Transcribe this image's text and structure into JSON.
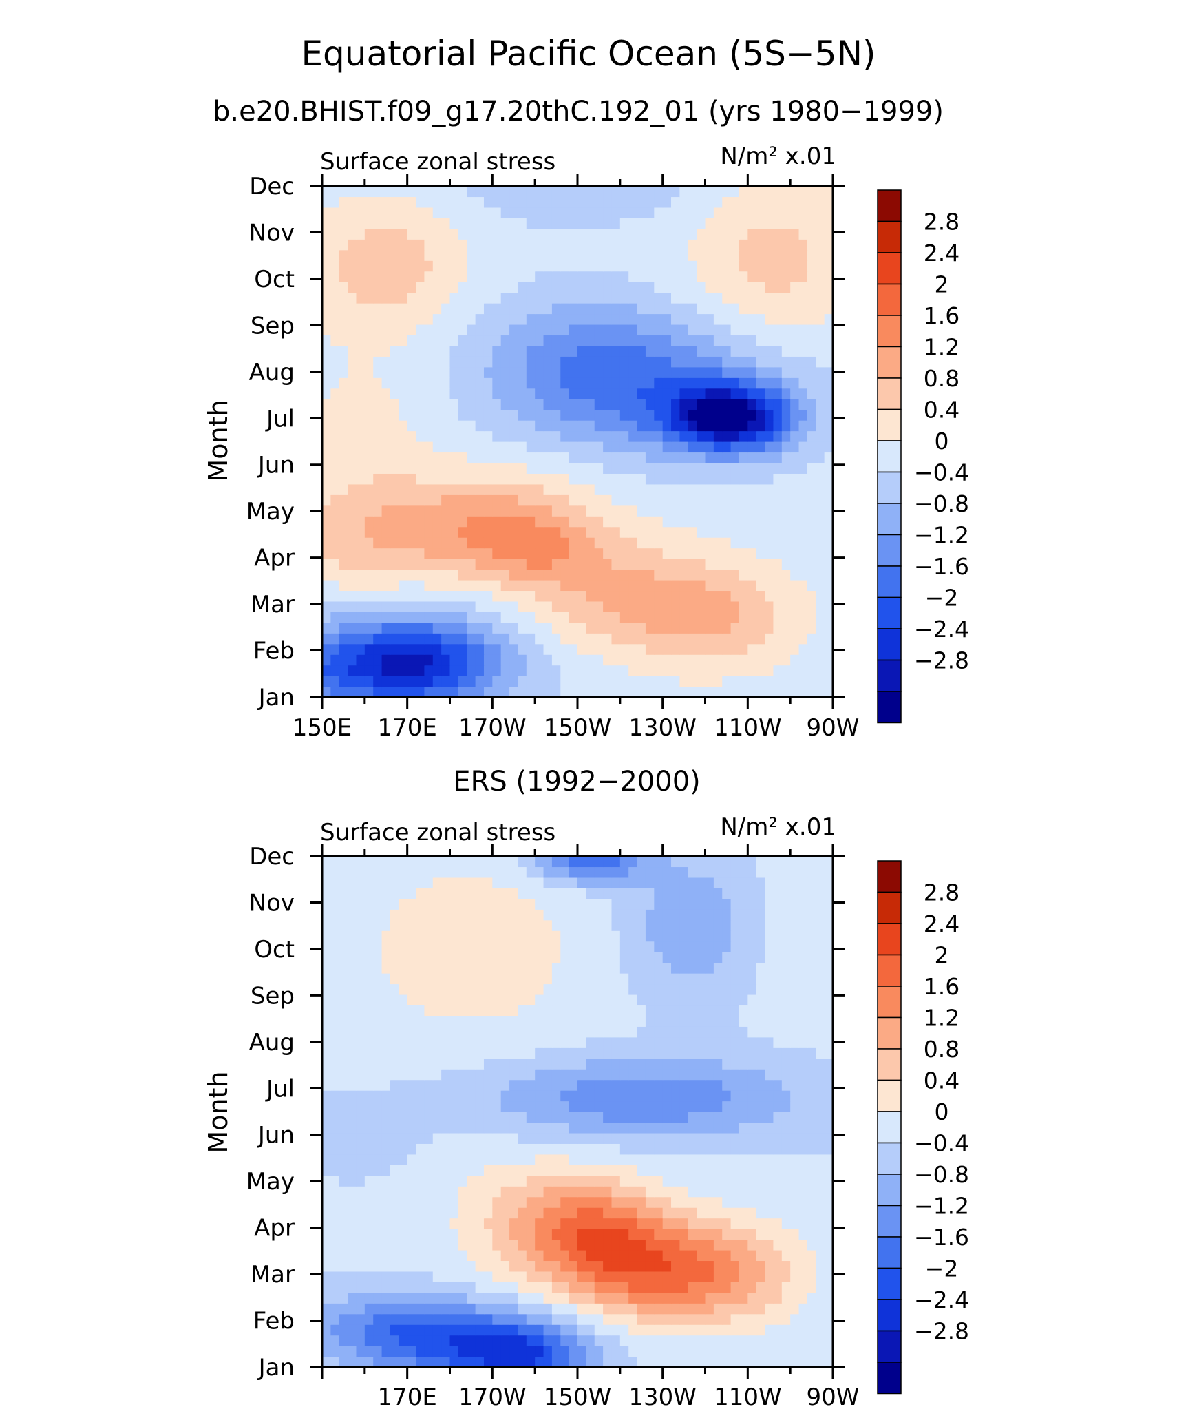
{
  "figure": {
    "title": "Equatorial Pacific Ocean (5S−5N)",
    "subtitle": "b.e20.BHIST.f09_g17.20thC.192_01 (yrs 1980−1999)"
  },
  "colors": {
    "levels_scale": [
      "#00008c",
      "#0a17b5",
      "#0f33d9",
      "#2153ec",
      "#4273ef",
      "#6a93f3",
      "#8fb1f7",
      "#b5cdfa",
      "#d8e8fc",
      "#fde6d2",
      "#fcc8ac",
      "#fbaa85",
      "#f98a5e",
      "#f3683d",
      "#e8451e",
      "#c72a06",
      "#8c0a02"
    ]
  },
  "colorbar": {
    "labels": [
      "2.8",
      "2.4",
      "2",
      "1.6",
      "1.2",
      "0.8",
      "0.4",
      "0",
      "−0.4",
      "−0.8",
      "−1.2",
      "−1.6",
      "−2",
      "−2.4",
      "−2.8"
    ]
  },
  "chart_data": [
    {
      "type": "heatmap",
      "panel_title": "",
      "left_label": "Surface zonal stress",
      "right_label": "N/m² x.01",
      "xlabel": "",
      "ylabel": "Month",
      "x_tick_labels": [
        "150E",
        "170E",
        "170W",
        "150W",
        "130W",
        "110W",
        "90W"
      ],
      "y_tick_labels": [
        "Jan",
        "Feb",
        "Mar",
        "Apr",
        "May",
        "Jun",
        "Jul",
        "Aug",
        "Sep",
        "Oct",
        "Nov",
        "Dec"
      ],
      "x_range": [
        150,
        270
      ],
      "y_range": [
        1,
        12
      ],
      "contour_levels": [
        -2.8,
        -2.4,
        -2.0,
        -1.6,
        -1.2,
        -0.8,
        -0.4,
        0,
        0.4,
        0.8,
        1.2,
        1.6,
        2.0,
        2.4,
        2.8
      ],
      "features": [
        {
          "lon": 155,
          "month": 1.6,
          "value": -1.4,
          "slon": 24,
          "smon": 0.7
        },
        {
          "lon": 172,
          "month": 1.7,
          "value": -1.2,
          "slon": 12,
          "smon": 0.6
        },
        {
          "lon": 178,
          "month": 2.2,
          "value": -0.6,
          "slon": 18,
          "smon": 0.8
        },
        {
          "lon": 162,
          "month": 4.4,
          "value": 0.8,
          "slon": 18,
          "smon": 0.8
        },
        {
          "lon": 192,
          "month": 4.8,
          "value": 1.1,
          "slon": 16,
          "smon": 0.8
        },
        {
          "lon": 218,
          "month": 3.2,
          "value": 1.0,
          "slon": 18,
          "smon": 0.9
        },
        {
          "lon": 243,
          "month": 2.7,
          "value": 0.9,
          "slon": 14,
          "smon": 0.8
        },
        {
          "lon": 200,
          "month": 4.2,
          "value": 0.6,
          "slon": 10,
          "smon": 0.5
        },
        {
          "lon": 160,
          "month": 6.5,
          "value": 0.4,
          "slon": 12,
          "smon": 1.4
        },
        {
          "lon": 246,
          "month": 7.0,
          "value": -2.8,
          "slon": 10,
          "smon": 0.5
        },
        {
          "lon": 230,
          "month": 7.6,
          "value": -1.2,
          "slon": 22,
          "smon": 1.0
        },
        {
          "lon": 210,
          "month": 8.3,
          "value": -0.8,
          "slon": 18,
          "smon": 1.0
        },
        {
          "lon": 165,
          "month": 10.3,
          "value": 0.9,
          "slon": 13,
          "smon": 1.0
        },
        {
          "lon": 256,
          "month": 10.4,
          "value": 0.8,
          "slon": 14,
          "smon": 1.3
        },
        {
          "lon": 210,
          "month": 11.9,
          "value": -0.5,
          "slon": 20,
          "smon": 0.5
        }
      ]
    },
    {
      "type": "heatmap",
      "panel_title": "ERS (1992−2000)",
      "left_label": "Surface zonal stress",
      "right_label": "N/m² x.01",
      "xlabel": "",
      "ylabel": "Month",
      "x_tick_labels": [
        "170E",
        "170W",
        "150W",
        "130W",
        "110W",
        "90W"
      ],
      "y_tick_labels": [
        "Jan",
        "Feb",
        "Mar",
        "Apr",
        "May",
        "Jun",
        "Jul",
        "Aug",
        "Sep",
        "Oct",
        "Nov",
        "Dec"
      ],
      "x_range": [
        150,
        270
      ],
      "y_range": [
        1,
        12
      ],
      "contour_levels": [
        -2.8,
        -2.4,
        -2.0,
        -1.6,
        -1.2,
        -0.8,
        -0.4,
        0,
        0.4,
        0.8,
        1.2,
        1.6,
        2.0,
        2.4,
        2.8
      ],
      "features": [
        {
          "lon": 185,
          "month": 1.4,
          "value": -1.4,
          "slon": 18,
          "smon": 0.6
        },
        {
          "lon": 168,
          "month": 1.9,
          "value": -1.0,
          "slon": 16,
          "smon": 0.5
        },
        {
          "lon": 198,
          "month": 1.2,
          "value": -1.2,
          "slon": 10,
          "smon": 0.5
        },
        {
          "lon": 227,
          "month": 3.1,
          "value": 1.8,
          "slon": 14,
          "smon": 0.8
        },
        {
          "lon": 213,
          "month": 4.0,
          "value": 1.6,
          "slon": 12,
          "smon": 0.8
        },
        {
          "lon": 248,
          "month": 3.0,
          "value": 1.0,
          "slon": 12,
          "smon": 0.8
        },
        {
          "lon": 195,
          "month": 4.2,
          "value": 0.6,
          "slon": 12,
          "smon": 1.0
        },
        {
          "lon": 225,
          "month": 6.8,
          "value": -1.2,
          "slon": 26,
          "smon": 0.6
        },
        {
          "lon": 158,
          "month": 6.0,
          "value": -0.4,
          "slon": 8,
          "smon": 0.5
        },
        {
          "lon": 185,
          "month": 10.0,
          "value": 0.6,
          "slon": 20,
          "smon": 1.5
        },
        {
          "lon": 213,
          "month": 11.9,
          "value": -1.6,
          "slon": 9,
          "smon": 0.35
        },
        {
          "lon": 236,
          "month": 10.5,
          "value": -0.8,
          "slon": 10,
          "smon": 1.0
        },
        {
          "lon": 263,
          "month": 10.3,
          "value": 0.2,
          "slon": 8,
          "smon": 1.5
        }
      ]
    }
  ]
}
